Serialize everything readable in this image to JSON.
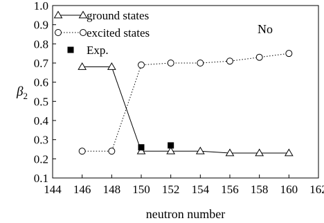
{
  "chart_data": {
    "type": "line",
    "title": "",
    "xlabel": "neutron number",
    "ylabel": "β2",
    "xlim": [
      144,
      162
    ],
    "ylim": [
      0.1,
      1.0
    ],
    "x_ticks": [
      144,
      146,
      148,
      150,
      152,
      154,
      156,
      158,
      160,
      162
    ],
    "y_ticks": [
      0.1,
      0.2,
      0.3,
      0.4,
      0.5,
      0.6,
      0.7,
      0.8,
      0.9,
      1.0
    ],
    "x_tick_labels": [
      "144",
      "146",
      "148",
      "150",
      "152",
      "154",
      "156",
      "158",
      "160",
      "162"
    ],
    "y_tick_labels": [
      "0.1",
      "0.2",
      "0.3",
      "0.4",
      "0.5",
      "0.6",
      "0.7",
      "0.8",
      "0.9",
      "1.0"
    ],
    "grid": false,
    "legend_position": "top-left",
    "annotation": "No",
    "series": [
      {
        "name": "ground states",
        "marker": "triangle-open",
        "line": "solid",
        "x": [
          146,
          148,
          150,
          152,
          154,
          156,
          158,
          160
        ],
        "values": [
          0.68,
          0.68,
          0.24,
          0.24,
          0.24,
          0.23,
          0.23,
          0.23
        ]
      },
      {
        "name": "excited states",
        "marker": "circle-open",
        "line": "dotted",
        "x": [
          146,
          148,
          150,
          152,
          154,
          156,
          158,
          160
        ],
        "values": [
          0.24,
          0.24,
          0.69,
          0.7,
          0.7,
          0.71,
          0.73,
          0.75
        ]
      },
      {
        "name": "Exp.",
        "marker": "square-filled",
        "line": "none",
        "x": [
          150,
          152
        ],
        "values": [
          0.26,
          0.27
        ]
      }
    ]
  }
}
